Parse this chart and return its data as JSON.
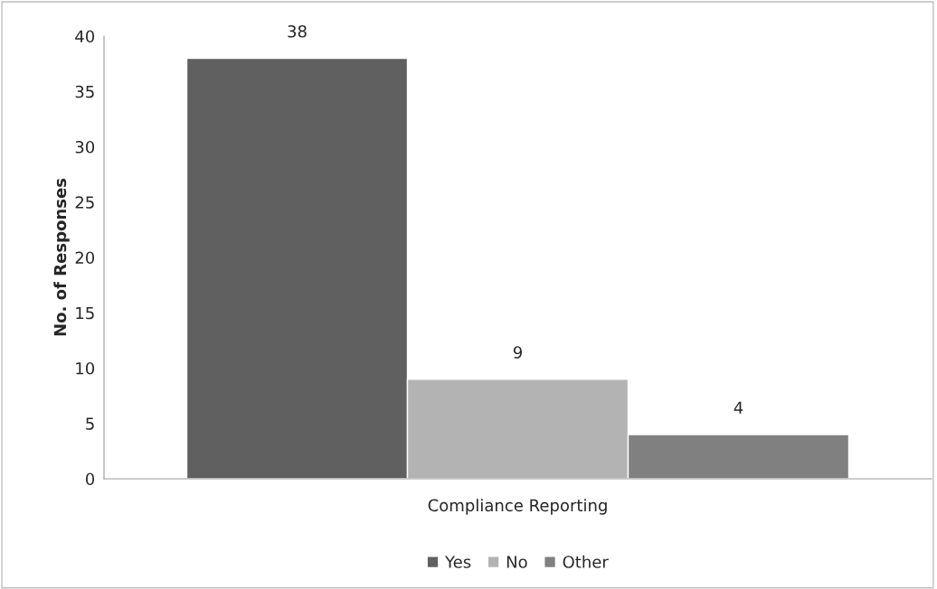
{
  "chart_data": {
    "type": "bar",
    "categories": [
      "Compliance Reporting"
    ],
    "ylabel": "No. of Responses",
    "series": [
      {
        "name": "Yes",
        "color": "#606060",
        "values": [
          38
        ]
      },
      {
        "name": "No",
        "color": "#b3b3b3",
        "values": [
          9
        ]
      },
      {
        "name": "Other",
        "color": "#808080",
        "values": [
          4
        ]
      }
    ],
    "ylim": [
      0,
      40
    ],
    "yticks": [
      0,
      5,
      10,
      15,
      20,
      25,
      30,
      35,
      40
    ],
    "grid": false,
    "legend": "bottom",
    "data_labels": true
  }
}
